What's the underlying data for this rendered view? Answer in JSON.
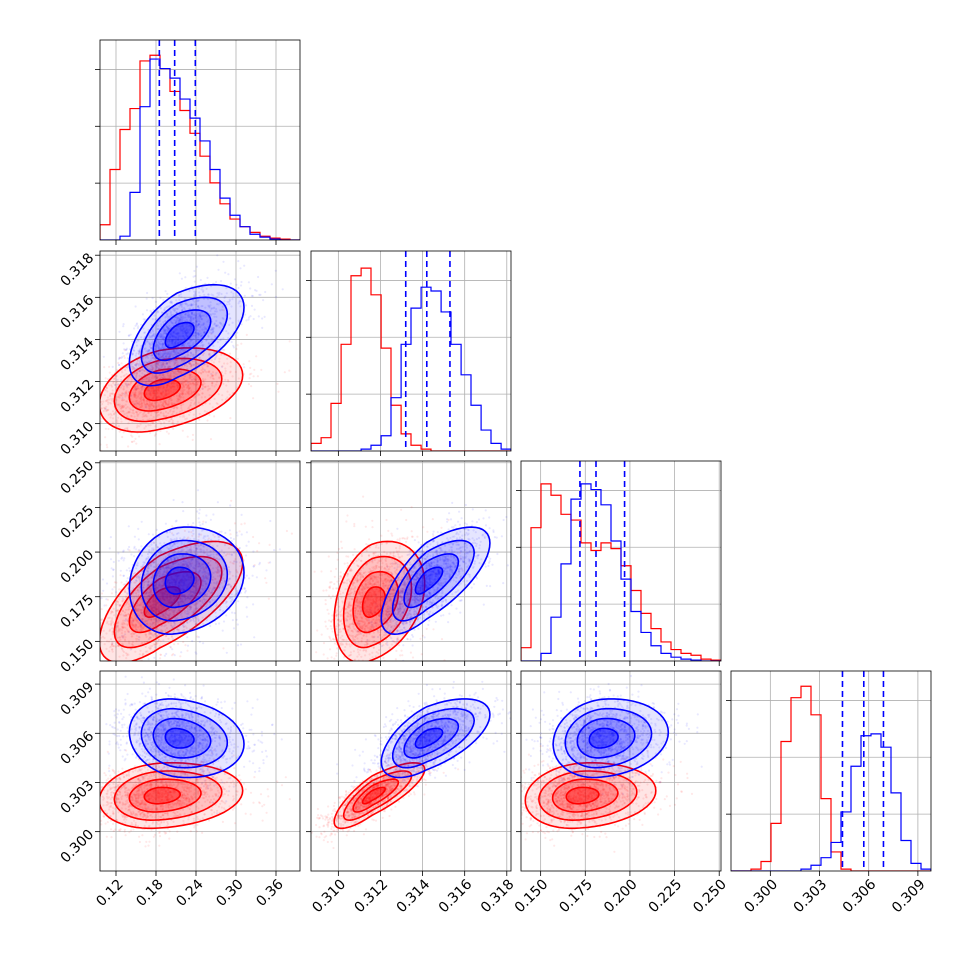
{
  "chart_data": {
    "type": "corner",
    "n_params": 4,
    "series": [
      {
        "name": "",
        "color": "#ff0000",
        "dashed_quantiles": false
      },
      {
        "name": "",
        "color": "#0000ff",
        "dashed_quantiles": true
      }
    ],
    "axes": [
      {
        "range": [
          0.096,
          0.396
        ],
        "ticks": [
          0.12,
          0.18,
          0.24,
          0.3,
          0.36
        ],
        "tick_labels": [
          "0.12",
          "0.18",
          "0.24",
          "0.30",
          "0.36"
        ]
      },
      {
        "range": [
          0.3087,
          0.3182
        ],
        "ticks": [
          0.31,
          0.312,
          0.314,
          0.316,
          0.318
        ],
        "tick_labels": [
          "0.310",
          "0.312",
          "0.314",
          "0.316",
          "0.318"
        ]
      },
      {
        "range": [
          0.139,
          0.251
        ],
        "ticks": [
          0.15,
          0.175,
          0.2,
          0.225,
          0.25
        ],
        "tick_labels": [
          "0.150",
          "0.175",
          "0.200",
          "0.225",
          "0.250"
        ]
      },
      {
        "range": [
          0.2976,
          0.3098
        ],
        "ticks": [
          0.3,
          0.303,
          0.306,
          0.309
        ],
        "tick_labels": [
          "0.300",
          "0.303",
          "0.306",
          "0.309"
        ]
      }
    ],
    "blue_quantiles": [
      [
        0.185,
        0.208,
        0.239
      ],
      [
        0.3132,
        0.3142,
        0.3153
      ],
      [
        0.172,
        0.181,
        0.197
      ],
      [
        0.3044,
        0.3057,
        0.3069
      ]
    ],
    "histograms": [
      {
        "bin_edges": [
          0.096,
          0.111,
          0.126,
          0.141,
          0.156,
          0.171,
          0.186,
          0.201,
          0.216,
          0.231,
          0.246,
          0.261,
          0.276,
          0.291,
          0.306,
          0.321,
          0.336,
          0.351,
          0.366,
          0.381,
          0.396
        ],
        "red": [
          0.08,
          0.37,
          0.58,
          0.69,
          0.94,
          0.97,
          0.9,
          0.78,
          0.68,
          0.56,
          0.44,
          0.3,
          0.19,
          0.11,
          0.07,
          0.04,
          0.02,
          0.01,
          0.005,
          0.0
        ],
        "blue": [
          0.0,
          0.0,
          0.02,
          0.25,
          0.7,
          0.95,
          0.9,
          0.85,
          0.74,
          0.64,
          0.52,
          0.37,
          0.22,
          0.13,
          0.07,
          0.03,
          0.015,
          0.005,
          0.0,
          0.0
        ]
      },
      {
        "bin_edges": [
          0.3087,
          0.30918,
          0.30965,
          0.31013,
          0.3106,
          0.31108,
          0.31155,
          0.31203,
          0.3125,
          0.31298,
          0.31345,
          0.31393,
          0.3144,
          0.31488,
          0.31535,
          0.31583,
          0.3163,
          0.31678,
          0.31725,
          0.31773,
          0.3182
        ],
        "red": [
          0.04,
          0.07,
          0.25,
          0.56,
          0.92,
          0.96,
          0.82,
          0.54,
          0.24,
          0.09,
          0.03,
          0.01,
          0.0,
          0.0,
          0.0,
          0.0,
          0.0,
          0.0,
          0.0,
          0.0
        ],
        "blue": [
          0.0,
          0.0,
          0.0,
          0.0,
          0.0,
          0.01,
          0.03,
          0.08,
          0.28,
          0.56,
          0.75,
          0.86,
          0.84,
          0.73,
          0.56,
          0.4,
          0.24,
          0.11,
          0.04,
          0.01
        ]
      },
      {
        "bin_edges": [
          0.139,
          0.1446,
          0.1502,
          0.1558,
          0.1614,
          0.167,
          0.1726,
          0.1782,
          0.1838,
          0.1894,
          0.195,
          0.2006,
          0.2062,
          0.2118,
          0.2174,
          0.223,
          0.2286,
          0.2342,
          0.2398,
          0.2454,
          0.251
        ],
        "red": [
          0.07,
          0.7,
          0.93,
          0.87,
          0.77,
          0.74,
          0.62,
          0.58,
          0.62,
          0.59,
          0.5,
          0.37,
          0.25,
          0.17,
          0.1,
          0.06,
          0.04,
          0.03,
          0.01,
          0.005
        ],
        "blue": [
          0.0,
          0.0,
          0.04,
          0.23,
          0.51,
          0.85,
          0.93,
          0.9,
          0.82,
          0.63,
          0.43,
          0.26,
          0.15,
          0.08,
          0.04,
          0.02,
          0.01,
          0.005,
          0.0,
          0.0
        ]
      },
      {
        "bin_edges": [
          0.2976,
          0.29821,
          0.29882,
          0.29943,
          0.30004,
          0.30065,
          0.30126,
          0.30187,
          0.30248,
          0.30309,
          0.3037,
          0.30431,
          0.30492,
          0.30553,
          0.30614,
          0.30675,
          0.30736,
          0.30797,
          0.30858,
          0.30919,
          0.3098
        ],
        "red": [
          0.0,
          0.0,
          0.01,
          0.05,
          0.25,
          0.68,
          0.91,
          0.97,
          0.82,
          0.38,
          0.1,
          0.01,
          0.0,
          0.0,
          0.0,
          0.0,
          0.0,
          0.0,
          0.0,
          0.0
        ],
        "blue": [
          0.0,
          0.0,
          0.0,
          0.0,
          0.0,
          0.0,
          0.0,
          0.01,
          0.03,
          0.07,
          0.15,
          0.31,
          0.55,
          0.71,
          0.72,
          0.65,
          0.41,
          0.16,
          0.04,
          0.01
        ]
      }
    ],
    "joint": {
      "red": {
        "mean": [
          0.185,
          0.3116,
          0.172,
          0.3022
        ],
        "sd": [
          0.05,
          0.001,
          0.017,
          0.001
        ],
        "corr": [
          [
            1,
            0.35,
            0.65,
            0.15
          ],
          [
            0.35,
            1,
            0.3,
            0.8
          ],
          [
            0.65,
            0.3,
            1,
            0.15
          ],
          [
            0.15,
            0.8,
            0.15,
            1
          ]
        ]
      },
      "blue": {
        "mean": [
          0.212,
          0.3142,
          0.184,
          0.3057
        ],
        "sd": [
          0.04,
          0.0012,
          0.015,
          0.0012
        ],
        "corr": [
          [
            1,
            0.55,
            0.15,
            -0.15
          ],
          [
            0.55,
            1,
            0.7,
            0.6
          ],
          [
            0.15,
            0.7,
            1,
            0.15
          ],
          [
            -0.15,
            0.6,
            0.15,
            1
          ]
        ]
      }
    }
  }
}
